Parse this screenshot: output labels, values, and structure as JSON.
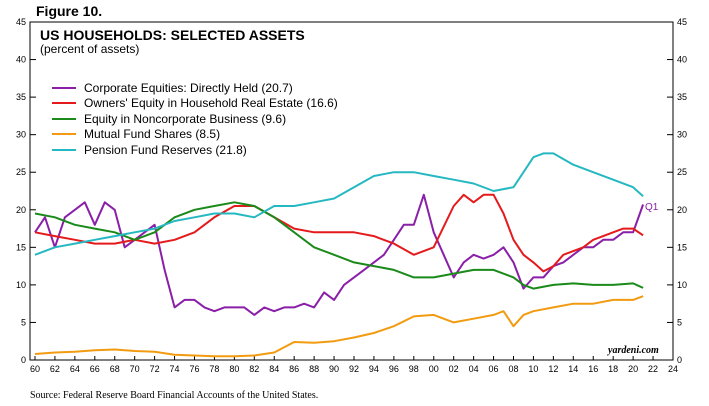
{
  "figure_label": "Figure 10.",
  "source": "Source: Federal Reserve Board Financial Accounts of the United States.",
  "credit": "yardeni.com",
  "chart_data": {
    "type": "line",
    "title": "US HOUSEHOLDS: SELECTED ASSETS",
    "subtitle": "(percent of assets)",
    "ylim": [
      0,
      45
    ],
    "yticks": [
      0,
      5,
      10,
      15,
      20,
      25,
      30,
      35,
      40,
      45
    ],
    "xlim": [
      1959.5,
      2024
    ],
    "xtick_labels": [
      "60",
      "62",
      "64",
      "66",
      "68",
      "70",
      "72",
      "74",
      "76",
      "78",
      "80",
      "82",
      "84",
      "86",
      "88",
      "90",
      "92",
      "94",
      "96",
      "98",
      "00",
      "02",
      "04",
      "06",
      "08",
      "10",
      "12",
      "14",
      "16",
      "18",
      "20",
      "22",
      "24"
    ],
    "xtick_years": [
      1960,
      1962,
      1964,
      1966,
      1968,
      1970,
      1972,
      1974,
      1976,
      1978,
      1980,
      1982,
      1984,
      1986,
      1988,
      1990,
      1992,
      1994,
      1996,
      1998,
      2000,
      2002,
      2004,
      2006,
      2008,
      2010,
      2012,
      2014,
      2016,
      2018,
      2020,
      2022,
      2024
    ],
    "annotation": "Q1",
    "series": [
      {
        "name": "Corporate Equities: Directly Held (20.7)",
        "color": "#8a1fa8",
        "x": [
          1960,
          1961,
          1962,
          1963,
          1964,
          1965,
          1966,
          1967,
          1968,
          1969,
          1970,
          1971,
          1972,
          1973,
          1974,
          1975,
          1976,
          1977,
          1978,
          1979,
          1980,
          1981,
          1982,
          1983,
          1984,
          1985,
          1986,
          1987,
          1988,
          1989,
          1990,
          1991,
          1992,
          1993,
          1994,
          1995,
          1996,
          1997,
          1998,
          1999,
          2000,
          2001,
          2002,
          2003,
          2004,
          2005,
          2006,
          2007,
          2008,
          2009,
          2010,
          2011,
          2012,
          2013,
          2014,
          2015,
          2016,
          2017,
          2018,
          2019,
          2020,
          2021
        ],
        "y": [
          17,
          19,
          15,
          19,
          20,
          21,
          18,
          21,
          20,
          15,
          16,
          17,
          18,
          12,
          7,
          8,
          8,
          7,
          6.5,
          7,
          7,
          7,
          6,
          7,
          6.5,
          7,
          7,
          7.5,
          7,
          9,
          8,
          10,
          11,
          12,
          13,
          14,
          16,
          18,
          18,
          22,
          17,
          14,
          11,
          13,
          14,
          13.5,
          14,
          15,
          13,
          9.5,
          11,
          11,
          12.5,
          13,
          14,
          15,
          15,
          16,
          16,
          17,
          17,
          20.7
        ]
      },
      {
        "name": "Owners' Equity in Household Real Estate (16.6)",
        "color": "#e41a1c",
        "x": [
          1960,
          1962,
          1964,
          1966,
          1968,
          1970,
          1972,
          1974,
          1976,
          1978,
          1980,
          1982,
          1984,
          1986,
          1988,
          1990,
          1992,
          1994,
          1996,
          1998,
          2000,
          2002,
          2003,
          2004,
          2005,
          2006,
          2007,
          2008,
          2009,
          2010,
          2011,
          2012,
          2013,
          2014,
          2015,
          2016,
          2017,
          2018,
          2019,
          2020,
          2021
        ],
        "y": [
          17,
          16.5,
          16,
          15.5,
          15.5,
          16,
          15.5,
          16,
          17,
          19,
          20.5,
          20.5,
          19,
          17.5,
          17,
          17,
          17,
          16.5,
          15.5,
          14,
          15,
          20.5,
          22,
          21,
          22,
          22,
          19.5,
          16,
          14,
          13,
          11.8,
          12.5,
          14,
          14.5,
          15,
          16,
          16.5,
          17,
          17.5,
          17.5,
          16.6
        ]
      },
      {
        "name": "Equity in Noncorporate Business (9.6)",
        "color": "#1a8a1a",
        "x": [
          1960,
          1962,
          1964,
          1966,
          1968,
          1970,
          1972,
          1974,
          1976,
          1978,
          1980,
          1982,
          1984,
          1986,
          1988,
          1990,
          1992,
          1994,
          1996,
          1998,
          2000,
          2002,
          2004,
          2006,
          2008,
          2009,
          2010,
          2012,
          2014,
          2016,
          2018,
          2020,
          2021
        ],
        "y": [
          19.5,
          19,
          18,
          17.5,
          17,
          16,
          17,
          19,
          20,
          20.5,
          21,
          20.5,
          19,
          17,
          15,
          14,
          13,
          12.5,
          12,
          11,
          11,
          11.5,
          12,
          12,
          11,
          10,
          9.5,
          10,
          10.2,
          10,
          10,
          10.2,
          9.6
        ]
      },
      {
        "name": "Mutual Fund Shares (8.5)",
        "color": "#f29b11",
        "x": [
          1960,
          1962,
          1964,
          1966,
          1968,
          1970,
          1972,
          1974,
          1976,
          1978,
          1980,
          1982,
          1984,
          1986,
          1988,
          1990,
          1992,
          1994,
          1996,
          1998,
          2000,
          2002,
          2004,
          2006,
          2007,
          2008,
          2009,
          2010,
          2012,
          2014,
          2016,
          2018,
          2020,
          2021
        ],
        "y": [
          0.8,
          1,
          1.1,
          1.3,
          1.4,
          1.2,
          1.1,
          0.7,
          0.6,
          0.5,
          0.5,
          0.6,
          1,
          2.4,
          2.3,
          2.5,
          3,
          3.6,
          4.5,
          5.8,
          6,
          5,
          5.5,
          6,
          6.5,
          4.5,
          6,
          6.5,
          7,
          7.5,
          7.5,
          8,
          8,
          8.5
        ]
      },
      {
        "name": "Pension Fund Reserves (21.8)",
        "color": "#26b8c2",
        "x": [
          1960,
          1962,
          1964,
          1966,
          1968,
          1970,
          1972,
          1974,
          1976,
          1978,
          1980,
          1982,
          1984,
          1986,
          1988,
          1990,
          1992,
          1994,
          1996,
          1998,
          2000,
          2002,
          2004,
          2006,
          2008,
          2009,
          2010,
          2011,
          2012,
          2014,
          2016,
          2018,
          2020,
          2021
        ],
        "y": [
          14,
          15,
          15.5,
          16,
          16.5,
          17,
          17.5,
          18.5,
          19,
          19.5,
          19.5,
          19,
          20.5,
          20.5,
          21,
          21.5,
          23,
          24.5,
          25,
          25,
          24.5,
          24,
          23.5,
          22.5,
          23,
          25,
          27,
          27.5,
          27.5,
          26,
          25,
          24,
          23,
          21.8
        ]
      }
    ]
  }
}
